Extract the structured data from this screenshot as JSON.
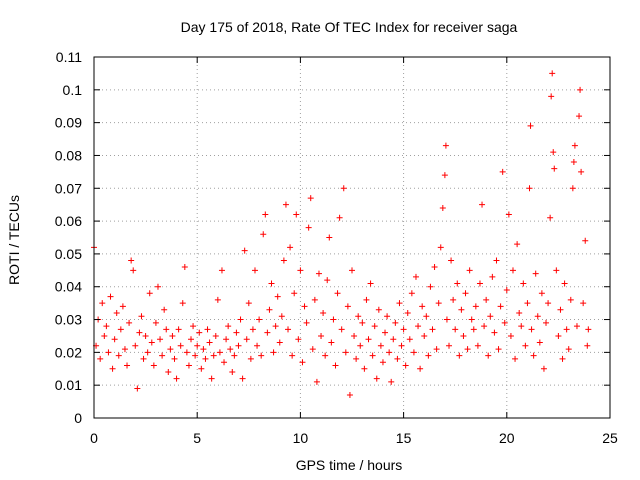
{
  "chart_data": {
    "type": "scatter",
    "title": "Day 175 of 2018, Rate Of TEC Index for receiver saga",
    "xlabel": "GPS time / hours",
    "ylabel": "ROTI / TECUs",
    "xlim": [
      0,
      25
    ],
    "ylim": [
      0,
      0.11
    ],
    "xticks": [
      0,
      5,
      10,
      15,
      20,
      25
    ],
    "xtick_labels": [
      "0",
      "5",
      "10",
      "15",
      "20",
      "25"
    ],
    "yticks": [
      0,
      0.01,
      0.02,
      0.03,
      0.04,
      0.05,
      0.06,
      0.07,
      0.08,
      0.09,
      0.1,
      0.11
    ],
    "ytick_labels": [
      "0",
      "0.01",
      "0.02",
      "0.03",
      "0.04",
      "0.05",
      "0.06",
      "0.07",
      "0.08",
      "0.09",
      "0.1",
      "0.11"
    ],
    "grid": true,
    "marker": "+",
    "color": "#ff0000",
    "series": [
      {
        "name": "ROTI",
        "points": [
          [
            0.0,
            0.052
          ],
          [
            0.1,
            0.022
          ],
          [
            0.2,
            0.03
          ],
          [
            0.3,
            0.018
          ],
          [
            0.4,
            0.035
          ],
          [
            0.5,
            0.025
          ],
          [
            0.6,
            0.028
          ],
          [
            0.7,
            0.02
          ],
          [
            0.8,
            0.037
          ],
          [
            0.9,
            0.015
          ],
          [
            1.0,
            0.024
          ],
          [
            1.1,
            0.032
          ],
          [
            1.2,
            0.019
          ],
          [
            1.3,
            0.027
          ],
          [
            1.4,
            0.034
          ],
          [
            1.5,
            0.021
          ],
          [
            1.6,
            0.016
          ],
          [
            1.7,
            0.029
          ],
          [
            1.8,
            0.048
          ],
          [
            1.9,
            0.045
          ],
          [
            2.0,
            0.022
          ],
          [
            2.1,
            0.009
          ],
          [
            2.2,
            0.026
          ],
          [
            2.3,
            0.031
          ],
          [
            2.4,
            0.018
          ],
          [
            2.5,
            0.025
          ],
          [
            2.6,
            0.02
          ],
          [
            2.7,
            0.038
          ],
          [
            2.8,
            0.023
          ],
          [
            2.9,
            0.016
          ],
          [
            3.0,
            0.029
          ],
          [
            3.1,
            0.04
          ],
          [
            3.2,
            0.024
          ],
          [
            3.3,
            0.019
          ],
          [
            3.4,
            0.033
          ],
          [
            3.5,
            0.027
          ],
          [
            3.6,
            0.014
          ],
          [
            3.7,
            0.021
          ],
          [
            3.8,
            0.025
          ],
          [
            3.9,
            0.018
          ],
          [
            4.0,
            0.012
          ],
          [
            4.1,
            0.027
          ],
          [
            4.2,
            0.022
          ],
          [
            4.3,
            0.035
          ],
          [
            4.4,
            0.046
          ],
          [
            4.5,
            0.02
          ],
          [
            4.6,
            0.016
          ],
          [
            4.7,
            0.024
          ],
          [
            4.8,
            0.028
          ],
          [
            4.9,
            0.019
          ],
          [
            5.0,
            0.022
          ],
          [
            5.1,
            0.026
          ],
          [
            5.2,
            0.015
          ],
          [
            5.3,
            0.021
          ],
          [
            5.4,
            0.018
          ],
          [
            5.5,
            0.027
          ],
          [
            5.6,
            0.023
          ],
          [
            5.7,
            0.012
          ],
          [
            5.8,
            0.019
          ],
          [
            5.9,
            0.025
          ],
          [
            6.0,
            0.036
          ],
          [
            6.1,
            0.02
          ],
          [
            6.2,
            0.045
          ],
          [
            6.3,
            0.017
          ],
          [
            6.4,
            0.024
          ],
          [
            6.5,
            0.028
          ],
          [
            6.6,
            0.021
          ],
          [
            6.7,
            0.014
          ],
          [
            6.8,
            0.019
          ],
          [
            6.9,
            0.026
          ],
          [
            7.0,
            0.022
          ],
          [
            7.1,
            0.03
          ],
          [
            7.2,
            0.012
          ],
          [
            7.3,
            0.051
          ],
          [
            7.4,
            0.024
          ],
          [
            7.5,
            0.035
          ],
          [
            7.6,
            0.018
          ],
          [
            7.7,
            0.027
          ],
          [
            7.8,
            0.045
          ],
          [
            7.9,
            0.022
          ],
          [
            8.0,
            0.03
          ],
          [
            8.1,
            0.019
          ],
          [
            8.2,
            0.056
          ],
          [
            8.3,
            0.062
          ],
          [
            8.4,
            0.026
          ],
          [
            8.5,
            0.033
          ],
          [
            8.6,
            0.041
          ],
          [
            8.7,
            0.02
          ],
          [
            8.8,
            0.028
          ],
          [
            8.9,
            0.037
          ],
          [
            9.0,
            0.023
          ],
          [
            9.1,
            0.031
          ],
          [
            9.2,
            0.048
          ],
          [
            9.3,
            0.065
          ],
          [
            9.4,
            0.027
          ],
          [
            9.5,
            0.052
          ],
          [
            9.6,
            0.019
          ],
          [
            9.7,
            0.038
          ],
          [
            9.8,
            0.062
          ],
          [
            9.9,
            0.024
          ],
          [
            10.0,
            0.045
          ],
          [
            10.1,
            0.017
          ],
          [
            10.2,
            0.034
          ],
          [
            10.3,
            0.029
          ],
          [
            10.4,
            0.058
          ],
          [
            10.5,
            0.067
          ],
          [
            10.6,
            0.021
          ],
          [
            10.7,
            0.036
          ],
          [
            10.8,
            0.011
          ],
          [
            10.9,
            0.044
          ],
          [
            11.0,
            0.025
          ],
          [
            11.1,
            0.032
          ],
          [
            11.2,
            0.019
          ],
          [
            11.3,
            0.042
          ],
          [
            11.4,
            0.055
          ],
          [
            11.5,
            0.023
          ],
          [
            11.6,
            0.03
          ],
          [
            11.7,
            0.016
          ],
          [
            11.8,
            0.038
          ],
          [
            11.9,
            0.061
          ],
          [
            12.0,
            0.027
          ],
          [
            12.1,
            0.07
          ],
          [
            12.2,
            0.02
          ],
          [
            12.3,
            0.034
          ],
          [
            12.4,
            0.007
          ],
          [
            12.5,
            0.045
          ],
          [
            12.6,
            0.025
          ],
          [
            12.7,
            0.018
          ],
          [
            12.8,
            0.031
          ],
          [
            12.9,
            0.022
          ],
          [
            13.0,
            0.029
          ],
          [
            13.1,
            0.015
          ],
          [
            13.2,
            0.036
          ],
          [
            13.3,
            0.024
          ],
          [
            13.4,
            0.041
          ],
          [
            13.5,
            0.019
          ],
          [
            13.6,
            0.028
          ],
          [
            13.7,
            0.012
          ],
          [
            13.8,
            0.033
          ],
          [
            13.9,
            0.022
          ],
          [
            14.0,
            0.017
          ],
          [
            14.1,
            0.026
          ],
          [
            14.2,
            0.031
          ],
          [
            14.3,
            0.02
          ],
          [
            14.4,
            0.011
          ],
          [
            14.5,
            0.024
          ],
          [
            14.6,
            0.029
          ],
          [
            14.7,
            0.018
          ],
          [
            14.8,
            0.035
          ],
          [
            14.9,
            0.022
          ],
          [
            15.0,
            0.027
          ],
          [
            15.1,
            0.016
          ],
          [
            15.2,
            0.032
          ],
          [
            15.3,
            0.024
          ],
          [
            15.4,
            0.038
          ],
          [
            15.5,
            0.02
          ],
          [
            15.6,
            0.043
          ],
          [
            15.7,
            0.028
          ],
          [
            15.8,
            0.015
          ],
          [
            15.9,
            0.034
          ],
          [
            16.0,
            0.025
          ],
          [
            16.1,
            0.031
          ],
          [
            16.2,
            0.019
          ],
          [
            16.3,
            0.04
          ],
          [
            16.4,
            0.027
          ],
          [
            16.5,
            0.046
          ],
          [
            16.6,
            0.021
          ],
          [
            16.7,
            0.035
          ],
          [
            16.8,
            0.052
          ],
          [
            16.9,
            0.064
          ],
          [
            17.0,
            0.074
          ],
          [
            17.05,
            0.083
          ],
          [
            17.1,
            0.03
          ],
          [
            17.2,
            0.022
          ],
          [
            17.3,
            0.048
          ],
          [
            17.4,
            0.036
          ],
          [
            17.5,
            0.027
          ],
          [
            17.6,
            0.041
          ],
          [
            17.7,
            0.019
          ],
          [
            17.8,
            0.033
          ],
          [
            17.9,
            0.025
          ],
          [
            18.0,
            0.038
          ],
          [
            18.1,
            0.021
          ],
          [
            18.2,
            0.045
          ],
          [
            18.3,
            0.03
          ],
          [
            18.4,
            0.027
          ],
          [
            18.5,
            0.034
          ],
          [
            18.6,
            0.022
          ],
          [
            18.7,
            0.041
          ],
          [
            18.8,
            0.065
          ],
          [
            18.9,
            0.028
          ],
          [
            19.0,
            0.036
          ],
          [
            19.1,
            0.019
          ],
          [
            19.2,
            0.031
          ],
          [
            19.3,
            0.043
          ],
          [
            19.4,
            0.026
          ],
          [
            19.5,
            0.048
          ],
          [
            19.6,
            0.021
          ],
          [
            19.7,
            0.034
          ],
          [
            19.8,
            0.075
          ],
          [
            19.9,
            0.029
          ],
          [
            20.0,
            0.039
          ],
          [
            20.1,
            0.062
          ],
          [
            20.2,
            0.025
          ],
          [
            20.3,
            0.045
          ],
          [
            20.4,
            0.018
          ],
          [
            20.5,
            0.053
          ],
          [
            20.6,
            0.032
          ],
          [
            20.7,
            0.028
          ],
          [
            20.8,
            0.041
          ],
          [
            20.9,
            0.022
          ],
          [
            21.0,
            0.035
          ],
          [
            21.1,
            0.07
          ],
          [
            21.15,
            0.089
          ],
          [
            21.2,
            0.027
          ],
          [
            21.3,
            0.019
          ],
          [
            21.4,
            0.044
          ],
          [
            21.5,
            0.031
          ],
          [
            21.6,
            0.023
          ],
          [
            21.7,
            0.038
          ],
          [
            21.8,
            0.015
          ],
          [
            21.9,
            0.029
          ],
          [
            22.0,
            0.035
          ],
          [
            22.1,
            0.061
          ],
          [
            22.15,
            0.098
          ],
          [
            22.2,
            0.105
          ],
          [
            22.25,
            0.081
          ],
          [
            22.3,
            0.076
          ],
          [
            22.4,
            0.045
          ],
          [
            22.5,
            0.025
          ],
          [
            22.6,
            0.033
          ],
          [
            22.7,
            0.018
          ],
          [
            22.8,
            0.041
          ],
          [
            22.9,
            0.027
          ],
          [
            23.0,
            0.021
          ],
          [
            23.1,
            0.036
          ],
          [
            23.2,
            0.07
          ],
          [
            23.25,
            0.078
          ],
          [
            23.3,
            0.083
          ],
          [
            23.4,
            0.028
          ],
          [
            23.5,
            0.092
          ],
          [
            23.55,
            0.1
          ],
          [
            23.6,
            0.075
          ],
          [
            23.7,
            0.035
          ],
          [
            23.8,
            0.054
          ],
          [
            23.9,
            0.022
          ],
          [
            23.95,
            0.027
          ]
        ]
      }
    ]
  }
}
